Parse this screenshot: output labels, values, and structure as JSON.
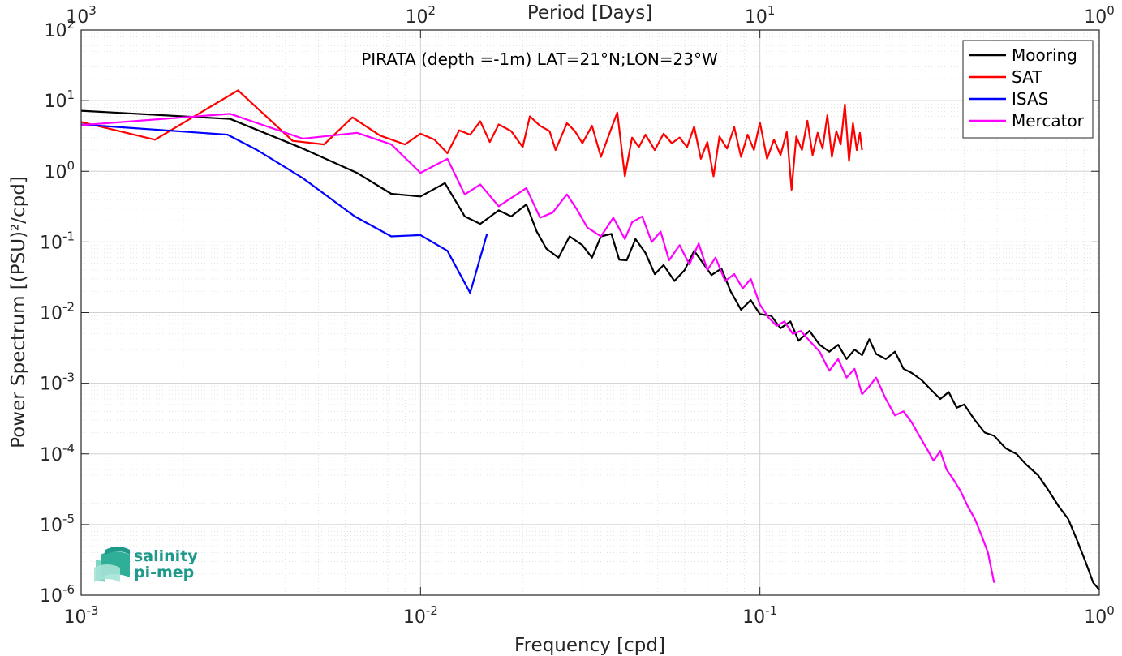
{
  "chart_data": {
    "type": "line",
    "title": "PIRATA (depth =-1m) LAT=21°N;LON=23°W",
    "xlabel": "Frequency [cpd]",
    "ylabel": "Power Spectrum [(PSU)²/cpd]",
    "top_xlabel": "Period [Days]",
    "xscale": "log",
    "yscale": "log",
    "xlim": [
      0.001,
      1
    ],
    "ylim": [
      1e-06,
      100
    ],
    "x_ticks": [
      {
        "value": 0.001,
        "base": "10",
        "exp": "-3"
      },
      {
        "value": 0.01,
        "base": "10",
        "exp": "-2"
      },
      {
        "value": 0.1,
        "base": "10",
        "exp": "-1"
      },
      {
        "value": 1,
        "base": "10",
        "exp": "0"
      }
    ],
    "y_ticks": [
      {
        "value": 1e-06,
        "base": "10",
        "exp": "-6"
      },
      {
        "value": 1e-05,
        "base": "10",
        "exp": "-5"
      },
      {
        "value": 0.0001,
        "base": "10",
        "exp": "-4"
      },
      {
        "value": 0.001,
        "base": "10",
        "exp": "-3"
      },
      {
        "value": 0.01,
        "base": "10",
        "exp": "-2"
      },
      {
        "value": 0.1,
        "base": "10",
        "exp": "-1"
      },
      {
        "value": 1,
        "base": "10",
        "exp": "0"
      },
      {
        "value": 10,
        "base": "10",
        "exp": "1"
      },
      {
        "value": 100,
        "base": "10",
        "exp": "2"
      }
    ],
    "top_ticks": [
      {
        "value": 0.001,
        "base": "10",
        "exp": "3"
      },
      {
        "value": 0.01,
        "base": "10",
        "exp": "2"
      },
      {
        "value": 0.1,
        "base": "10",
        "exp": "1"
      },
      {
        "value": 1,
        "base": "10",
        "exp": "0"
      }
    ],
    "grid": true,
    "legend_position": "top-right",
    "series": [
      {
        "name": "Mooring",
        "color": "#000000",
        "points": [
          [
            0.001,
            7.2
          ],
          [
            0.00275,
            5.5
          ],
          [
            0.0045,
            2.1
          ],
          [
            0.0065,
            0.95
          ],
          [
            0.0082,
            0.48
          ],
          [
            0.01,
            0.44
          ],
          [
            0.0118,
            0.68
          ],
          [
            0.0135,
            0.23
          ],
          [
            0.015,
            0.18
          ],
          [
            0.017,
            0.28
          ],
          [
            0.0185,
            0.23
          ],
          [
            0.0205,
            0.34
          ],
          [
            0.022,
            0.14
          ],
          [
            0.0235,
            0.08
          ],
          [
            0.0255,
            0.06
          ],
          [
            0.0275,
            0.12
          ],
          [
            0.03,
            0.09
          ],
          [
            0.032,
            0.06
          ],
          [
            0.034,
            0.12
          ],
          [
            0.0365,
            0.13
          ],
          [
            0.0385,
            0.056
          ],
          [
            0.0405,
            0.055
          ],
          [
            0.043,
            0.11
          ],
          [
            0.046,
            0.07
          ],
          [
            0.049,
            0.035
          ],
          [
            0.052,
            0.047
          ],
          [
            0.056,
            0.028
          ],
          [
            0.06,
            0.04
          ],
          [
            0.064,
            0.075
          ],
          [
            0.068,
            0.05
          ],
          [
            0.072,
            0.034
          ],
          [
            0.077,
            0.042
          ],
          [
            0.082,
            0.02
          ],
          [
            0.088,
            0.011
          ],
          [
            0.094,
            0.015
          ],
          [
            0.1,
            0.0095
          ],
          [
            0.108,
            0.009
          ],
          [
            0.115,
            0.006
          ],
          [
            0.123,
            0.0075
          ],
          [
            0.13,
            0.004
          ],
          [
            0.14,
            0.0055
          ],
          [
            0.15,
            0.0035
          ],
          [
            0.16,
            0.0028
          ],
          [
            0.17,
            0.0035
          ],
          [
            0.18,
            0.0022
          ],
          [
            0.19,
            0.003
          ],
          [
            0.2,
            0.0025
          ],
          [
            0.21,
            0.0042
          ],
          [
            0.22,
            0.0026
          ],
          [
            0.235,
            0.0022
          ],
          [
            0.25,
            0.0028
          ],
          [
            0.265,
            0.0016
          ],
          [
            0.28,
            0.0014
          ],
          [
            0.3,
            0.0011
          ],
          [
            0.32,
            0.0008
          ],
          [
            0.34,
            0.0006
          ],
          [
            0.36,
            0.00075
          ],
          [
            0.38,
            0.00045
          ],
          [
            0.4,
            0.0005
          ],
          [
            0.43,
            0.0003
          ],
          [
            0.46,
            0.0002
          ],
          [
            0.49,
            0.00018
          ],
          [
            0.53,
            0.00012
          ],
          [
            0.57,
            0.0001
          ],
          [
            0.61,
            7e-05
          ],
          [
            0.66,
            5e-05
          ],
          [
            0.71,
            3e-05
          ],
          [
            0.76,
            1.8e-05
          ],
          [
            0.81,
            1.2e-05
          ],
          [
            0.86,
            6e-06
          ],
          [
            0.91,
            3e-06
          ],
          [
            0.96,
            1.5e-06
          ],
          [
            1.0,
            1.2e-06
          ]
        ]
      },
      {
        "name": "SAT",
        "color": "#ff0000",
        "points": [
          [
            0.001,
            5.0
          ],
          [
            0.00165,
            2.8
          ],
          [
            0.0029,
            14.0
          ],
          [
            0.0042,
            2.7
          ],
          [
            0.0052,
            2.4
          ],
          [
            0.0063,
            5.8
          ],
          [
            0.0076,
            3.2
          ],
          [
            0.009,
            2.4
          ],
          [
            0.01,
            3.4
          ],
          [
            0.011,
            2.8
          ],
          [
            0.012,
            1.8
          ],
          [
            0.013,
            3.8
          ],
          [
            0.014,
            3.3
          ],
          [
            0.015,
            5.1
          ],
          [
            0.016,
            2.6
          ],
          [
            0.017,
            4.6
          ],
          [
            0.0185,
            3.7
          ],
          [
            0.02,
            2.2
          ],
          [
            0.021,
            6.0
          ],
          [
            0.0225,
            4.4
          ],
          [
            0.024,
            3.7
          ],
          [
            0.025,
            2.0
          ],
          [
            0.027,
            4.8
          ],
          [
            0.0285,
            3.7
          ],
          [
            0.03,
            2.5
          ],
          [
            0.032,
            4.4
          ],
          [
            0.034,
            1.6
          ],
          [
            0.036,
            3.4
          ],
          [
            0.038,
            6.8
          ],
          [
            0.04,
            0.85
          ],
          [
            0.042,
            3.0
          ],
          [
            0.044,
            2.2
          ],
          [
            0.046,
            3.3
          ],
          [
            0.049,
            2.0
          ],
          [
            0.052,
            3.4
          ],
          [
            0.055,
            2.5
          ],
          [
            0.058,
            3.0
          ],
          [
            0.061,
            2.2
          ],
          [
            0.064,
            4.3
          ],
          [
            0.067,
            1.5
          ],
          [
            0.07,
            2.6
          ],
          [
            0.073,
            0.85
          ],
          [
            0.076,
            3.1
          ],
          [
            0.08,
            2.1
          ],
          [
            0.084,
            4.2
          ],
          [
            0.088,
            1.6
          ],
          [
            0.092,
            3.3
          ],
          [
            0.096,
            2.0
          ],
          [
            0.1,
            4.9
          ],
          [
            0.105,
            1.5
          ],
          [
            0.11,
            2.8
          ],
          [
            0.115,
            1.7
          ],
          [
            0.12,
            3.6
          ],
          [
            0.124,
            0.55
          ],
          [
            0.128,
            3.1
          ],
          [
            0.133,
            2.0
          ],
          [
            0.138,
            5.2
          ],
          [
            0.143,
            1.7
          ],
          [
            0.148,
            3.5
          ],
          [
            0.153,
            2.1
          ],
          [
            0.158,
            6.2
          ],
          [
            0.163,
            1.6
          ],
          [
            0.168,
            3.7
          ],
          [
            0.173,
            2.4
          ],
          [
            0.178,
            8.8
          ],
          [
            0.183,
            1.4
          ],
          [
            0.188,
            4.8
          ],
          [
            0.193,
            2.0
          ],
          [
            0.197,
            3.5
          ],
          [
            0.2,
            2.0
          ]
        ]
      },
      {
        "name": "ISAS",
        "color": "#0000ff",
        "points": [
          [
            0.001,
            4.6
          ],
          [
            0.0027,
            3.3
          ],
          [
            0.0033,
            2.0
          ],
          [
            0.0045,
            0.8
          ],
          [
            0.0064,
            0.23
          ],
          [
            0.0082,
            0.12
          ],
          [
            0.01,
            0.125
          ],
          [
            0.012,
            0.075
          ],
          [
            0.014,
            0.019
          ],
          [
            0.0157,
            0.13
          ]
        ]
      },
      {
        "name": "Mercator",
        "color": "#ff00ff",
        "points": [
          [
            0.001,
            4.5
          ],
          [
            0.00275,
            6.5
          ],
          [
            0.0045,
            2.9
          ],
          [
            0.0065,
            3.5
          ],
          [
            0.0082,
            2.4
          ],
          [
            0.01,
            0.95
          ],
          [
            0.012,
            1.5
          ],
          [
            0.0135,
            0.47
          ],
          [
            0.015,
            0.65
          ],
          [
            0.017,
            0.32
          ],
          [
            0.0205,
            0.58
          ],
          [
            0.0225,
            0.22
          ],
          [
            0.0245,
            0.26
          ],
          [
            0.027,
            0.47
          ],
          [
            0.029,
            0.28
          ],
          [
            0.031,
            0.16
          ],
          [
            0.034,
            0.12
          ],
          [
            0.037,
            0.22
          ],
          [
            0.04,
            0.11
          ],
          [
            0.042,
            0.19
          ],
          [
            0.045,
            0.23
          ],
          [
            0.048,
            0.1
          ],
          [
            0.051,
            0.14
          ],
          [
            0.054,
            0.055
          ],
          [
            0.058,
            0.09
          ],
          [
            0.062,
            0.048
          ],
          [
            0.066,
            0.095
          ],
          [
            0.07,
            0.04
          ],
          [
            0.074,
            0.06
          ],
          [
            0.079,
            0.028
          ],
          [
            0.084,
            0.035
          ],
          [
            0.089,
            0.022
          ],
          [
            0.094,
            0.03
          ],
          [
            0.1,
            0.013
          ],
          [
            0.106,
            0.0085
          ],
          [
            0.112,
            0.0065
          ],
          [
            0.118,
            0.0075
          ],
          [
            0.125,
            0.005
          ],
          [
            0.132,
            0.0055
          ],
          [
            0.14,
            0.004
          ],
          [
            0.15,
            0.0028
          ],
          [
            0.16,
            0.0015
          ],
          [
            0.17,
            0.0022
          ],
          [
            0.18,
            0.0012
          ],
          [
            0.19,
            0.0016
          ],
          [
            0.2,
            0.0007
          ],
          [
            0.21,
            0.0009
          ],
          [
            0.22,
            0.0012
          ],
          [
            0.235,
            0.0006
          ],
          [
            0.25,
            0.00035
          ],
          [
            0.265,
            0.0004
          ],
          [
            0.28,
            0.00028
          ],
          [
            0.295,
            0.00018
          ],
          [
            0.31,
            0.00012
          ],
          [
            0.325,
            8e-05
          ],
          [
            0.34,
            0.00011
          ],
          [
            0.355,
            6e-05
          ],
          [
            0.37,
            4.5e-05
          ],
          [
            0.39,
            3e-05
          ],
          [
            0.41,
            1.8e-05
          ],
          [
            0.43,
            1.2e-05
          ],
          [
            0.45,
            7e-06
          ],
          [
            0.47,
            4e-06
          ],
          [
            0.49,
            1.5e-06
          ]
        ]
      }
    ]
  },
  "logo": {
    "line1": "salinity",
    "line2": "pi-mep",
    "color": "#1f9a8a",
    "icon": "salinity-waves-icon"
  }
}
